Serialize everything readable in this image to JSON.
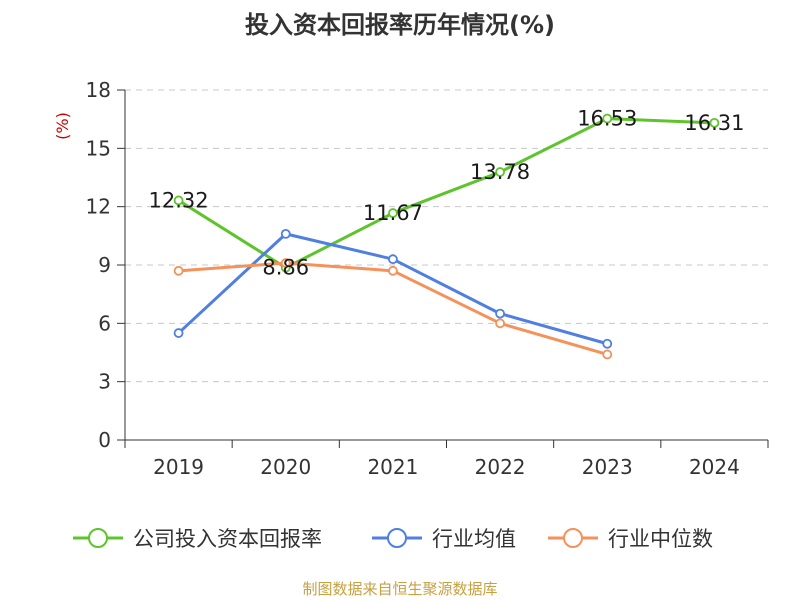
{
  "chart_data": {
    "type": "line",
    "title": "投入资本回报率历年情况(%)",
    "ylabel": "(%)",
    "xlabel": "",
    "categories": [
      "2019",
      "2020",
      "2021",
      "2022",
      "2023",
      "2024"
    ],
    "yticks": [
      0,
      3,
      6,
      9,
      12,
      15,
      18
    ],
    "ylim": [
      0,
      18
    ],
    "grid": true,
    "legend_position": "bottom",
    "series": [
      {
        "name": "公司投入资本回报率",
        "color": "#5ec42c",
        "values": [
          12.32,
          8.86,
          11.67,
          13.78,
          16.53,
          16.31
        ],
        "labels": [
          "12.32",
          "8.86",
          "11.67",
          "13.78",
          "16.53",
          "16.31"
        ]
      },
      {
        "name": "行业均值",
        "color": "#4f7fe0",
        "values": [
          5.5,
          10.6,
          9.3,
          6.5,
          4.95,
          null
        ]
      },
      {
        "name": "行业中位数",
        "color": "#f5915a",
        "values": [
          8.7,
          9.1,
          8.7,
          6.0,
          4.4,
          null
        ]
      }
    ]
  },
  "source": "制图数据来自恒生聚源数据库"
}
